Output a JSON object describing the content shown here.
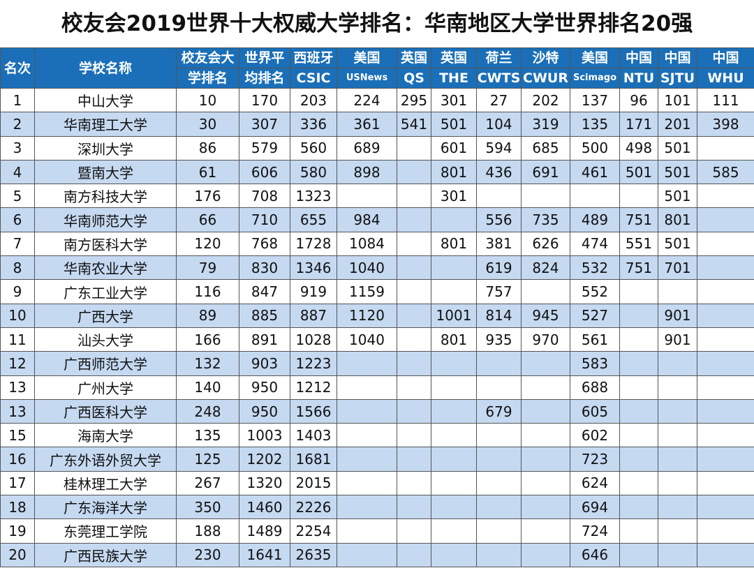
{
  "title": "校友会2019世界十大权威大学排名：华南地区大学世界排名20强",
  "header": {
    "rank": "名次",
    "name": "学校名称",
    "xyh_1": "校友会大",
    "xyh_2": "学排名",
    "avg_1": "世界平",
    "avg_2": "均排名",
    "cols": [
      {
        "country": "西班牙",
        "name": "CSIC"
      },
      {
        "country": "美国",
        "name": "USNews"
      },
      {
        "country": "英国",
        "name": "QS"
      },
      {
        "country": "英国",
        "name": "THE"
      },
      {
        "country": "荷兰",
        "name": "CWTS"
      },
      {
        "country": "沙特",
        "name": "CWUR"
      },
      {
        "country": "美国",
        "name": "Scimago"
      },
      {
        "country": "中国",
        "name": "NTU"
      },
      {
        "country": "中国",
        "name": "SJTU"
      },
      {
        "country": "中国",
        "name": "WHU"
      }
    ]
  },
  "rows": [
    [
      "1",
      "中山大学",
      "10",
      "170",
      "203",
      "224",
      "295",
      "301",
      "27",
      "202",
      "137",
      "96",
      "101",
      "111"
    ],
    [
      "2",
      "华南理工大学",
      "30",
      "307",
      "336",
      "361",
      "541",
      "501",
      "104",
      "319",
      "135",
      "171",
      "201",
      "398"
    ],
    [
      "3",
      "深圳大学",
      "86",
      "579",
      "560",
      "689",
      "",
      "601",
      "594",
      "685",
      "500",
      "498",
      "501",
      ""
    ],
    [
      "4",
      "暨南大学",
      "61",
      "606",
      "580",
      "898",
      "",
      "801",
      "436",
      "691",
      "461",
      "501",
      "501",
      "585"
    ],
    [
      "5",
      "南方科技大学",
      "176",
      "708",
      "1323",
      "",
      "",
      "301",
      "",
      "",
      "",
      "",
      "501",
      ""
    ],
    [
      "6",
      "华南师范大学",
      "66",
      "710",
      "655",
      "984",
      "",
      "",
      "556",
      "735",
      "489",
      "751",
      "801",
      ""
    ],
    [
      "7",
      "南方医科大学",
      "120",
      "768",
      "1728",
      "1084",
      "",
      "801",
      "381",
      "626",
      "474",
      "551",
      "501",
      ""
    ],
    [
      "8",
      "华南农业大学",
      "79",
      "830",
      "1346",
      "1040",
      "",
      "",
      "619",
      "824",
      "532",
      "751",
      "701",
      ""
    ],
    [
      "9",
      "广东工业大学",
      "116",
      "847",
      "919",
      "1159",
      "",
      "",
      "757",
      "",
      "552",
      "",
      "",
      ""
    ],
    [
      "10",
      "广西大学",
      "89",
      "885",
      "887",
      "1120",
      "",
      "1001",
      "814",
      "945",
      "527",
      "",
      "901",
      ""
    ],
    [
      "11",
      "汕头大学",
      "166",
      "891",
      "1028",
      "1040",
      "",
      "801",
      "935",
      "970",
      "561",
      "",
      "901",
      ""
    ],
    [
      "12",
      "广西师范大学",
      "132",
      "903",
      "1223",
      "",
      "",
      "",
      "",
      "",
      "583",
      "",
      "",
      ""
    ],
    [
      "13",
      "广州大学",
      "140",
      "950",
      "1212",
      "",
      "",
      "",
      "",
      "",
      "688",
      "",
      "",
      ""
    ],
    [
      "13",
      "广西医科大学",
      "248",
      "950",
      "1566",
      "",
      "",
      "",
      "679",
      "",
      "605",
      "",
      "",
      ""
    ],
    [
      "15",
      "海南大学",
      "135",
      "1003",
      "1403",
      "",
      "",
      "",
      "",
      "",
      "602",
      "",
      "",
      ""
    ],
    [
      "16",
      "广东外语外贸大学",
      "125",
      "1202",
      "1681",
      "",
      "",
      "",
      "",
      "",
      "723",
      "",
      "",
      ""
    ],
    [
      "17",
      "桂林理工大学",
      "267",
      "1320",
      "2015",
      "",
      "",
      "",
      "",
      "",
      "624",
      "",
      "",
      ""
    ],
    [
      "18",
      "广东海洋大学",
      "350",
      "1460",
      "2226",
      "",
      "",
      "",
      "",
      "",
      "694",
      "",
      "",
      ""
    ],
    [
      "19",
      "东莞理工学院",
      "188",
      "1489",
      "2254",
      "",
      "",
      "",
      "",
      "",
      "724",
      "",
      "",
      ""
    ],
    [
      "20",
      "广西民族大学",
      "230",
      "1641",
      "2635",
      "",
      "",
      "",
      "",
      "",
      "646",
      "",
      "",
      ""
    ]
  ],
  "colors": {
    "header_bg": "#1a6fb8",
    "alt_row": "#c5d9f1"
  }
}
